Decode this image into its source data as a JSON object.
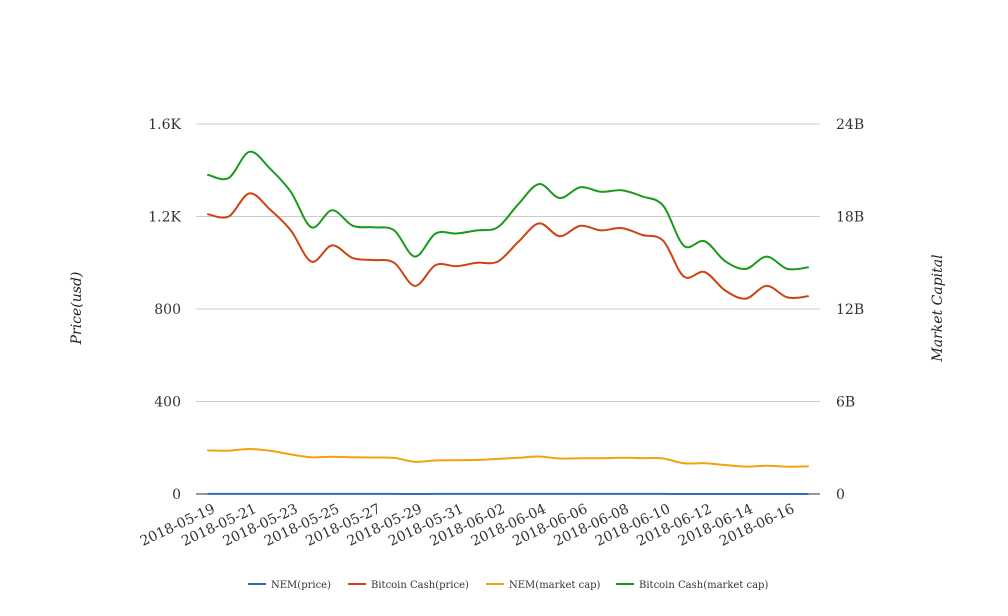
{
  "chart_data": {
    "type": "line",
    "title": "",
    "xlabel": "",
    "ylabel": "Price(usd)",
    "y2label": "Market Capital",
    "ylim": [
      0,
      1600
    ],
    "y2lim": [
      0,
      24000000000
    ],
    "yticks": [
      "0",
      "400",
      "800",
      "1.2K",
      "1.6K"
    ],
    "y2ticks": [
      "0",
      "6B",
      "12B",
      "18B",
      "24B"
    ],
    "grid": true,
    "legend_position": "bottom",
    "x": [
      "2018-05-19",
      "2018-05-20",
      "2018-05-21",
      "2018-05-22",
      "2018-05-23",
      "2018-05-24",
      "2018-05-25",
      "2018-05-26",
      "2018-05-27",
      "2018-05-28",
      "2018-05-29",
      "2018-05-30",
      "2018-05-31",
      "2018-06-01",
      "2018-06-02",
      "2018-06-03",
      "2018-06-04",
      "2018-06-05",
      "2018-06-06",
      "2018-06-07",
      "2018-06-08",
      "2018-06-09",
      "2018-06-10",
      "2018-06-11",
      "2018-06-12",
      "2018-06-13",
      "2018-06-14",
      "2018-06-15",
      "2018-06-16",
      "2018-06-17"
    ],
    "xticks": [
      "2018-05-19",
      "2018-05-21",
      "2018-05-23",
      "2018-05-25",
      "2018-05-27",
      "2018-05-29",
      "2018-05-31",
      "2018-06-02",
      "2018-06-04",
      "2018-06-06",
      "2018-06-08",
      "2018-06-10",
      "2018-06-12",
      "2018-06-14",
      "2018-06-16"
    ],
    "series": [
      {
        "name": "NEM(price)",
        "color": "#2e6eb5",
        "axis": "left",
        "values": [
          0.27,
          0.27,
          0.29,
          0.28,
          0.26,
          0.24,
          0.25,
          0.24,
          0.24,
          0.23,
          0.21,
          0.22,
          0.22,
          0.22,
          0.23,
          0.24,
          0.25,
          0.24,
          0.24,
          0.24,
          0.24,
          0.24,
          0.23,
          0.2,
          0.2,
          0.19,
          0.18,
          0.18,
          0.18,
          0.18
        ]
      },
      {
        "name": "Bitcoin Cash(price)",
        "color": "#cc4314",
        "axis": "left",
        "values": [
          1210,
          1200,
          1300,
          1230,
          1140,
          1005,
          1075,
          1020,
          1012,
          1000,
          900,
          990,
          985,
          1000,
          1005,
          1090,
          1170,
          1115,
          1160,
          1140,
          1150,
          1120,
          1095,
          940,
          960,
          880,
          845,
          900,
          850,
          855
        ]
      },
      {
        "name": "NEM(market cap)",
        "color": "#f0a30a",
        "axis": "right",
        "values": [
          2830000000,
          2810000000,
          2920000000,
          2800000000,
          2570000000,
          2380000000,
          2420000000,
          2380000000,
          2370000000,
          2340000000,
          2090000000,
          2180000000,
          2190000000,
          2210000000,
          2280000000,
          2350000000,
          2430000000,
          2300000000,
          2320000000,
          2320000000,
          2350000000,
          2330000000,
          2300000000,
          1990000000,
          2000000000,
          1880000000,
          1780000000,
          1830000000,
          1770000000,
          1790000000
        ]
      },
      {
        "name": "Bitcoin Cash(market cap)",
        "color": "#1a9a1a",
        "axis": "right",
        "values": [
          20700000000,
          20500000000,
          22200000000,
          21100000000,
          19600000000,
          17300000000,
          18400000000,
          17400000000,
          17300000000,
          17100000000,
          15400000000,
          16900000000,
          16900000000,
          17100000000,
          17300000000,
          18800000000,
          20100000000,
          19200000000,
          19900000000,
          19600000000,
          19700000000,
          19300000000,
          18700000000,
          16100000000,
          16400000000,
          15100000000,
          14600000000,
          15400000000,
          14600000000,
          14700000000
        ]
      }
    ]
  }
}
